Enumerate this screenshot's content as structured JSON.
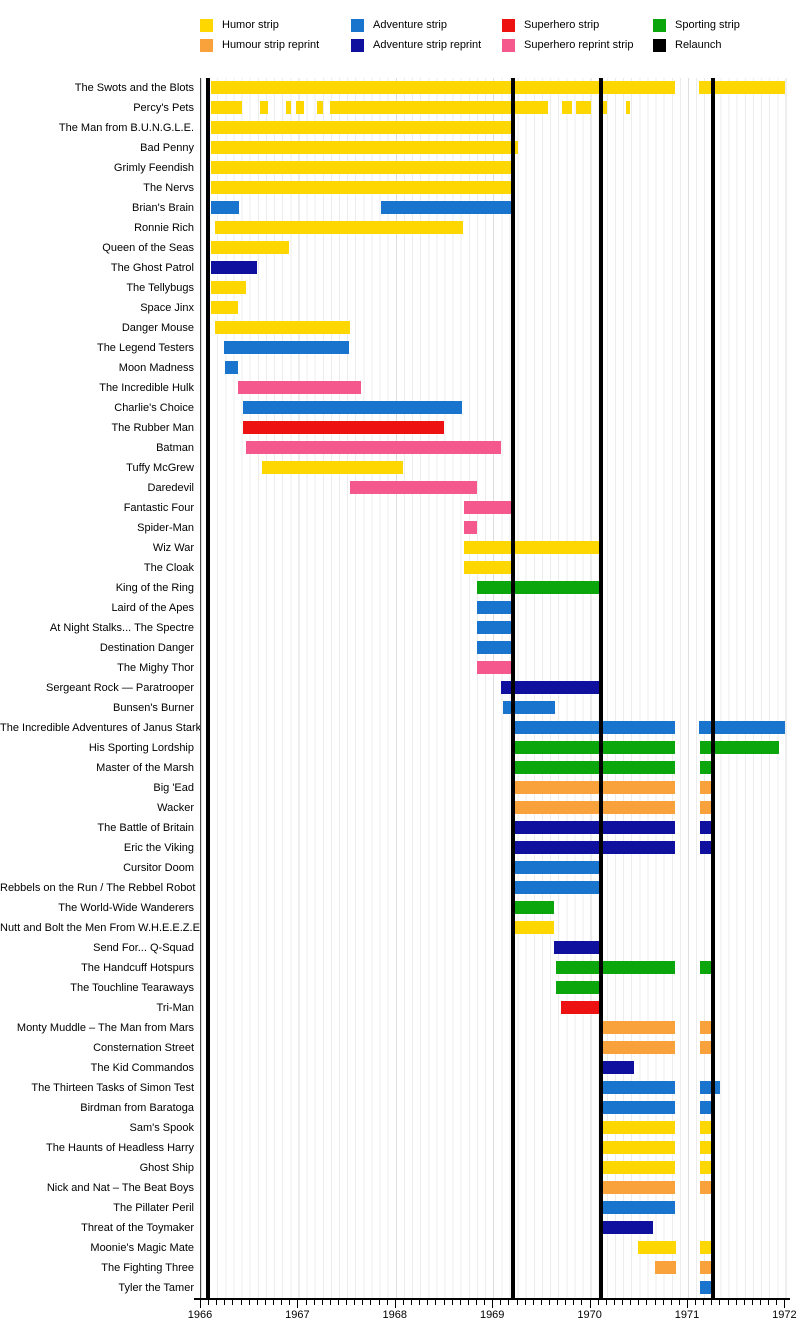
{
  "chart_data": {
    "type": "gantt-timeline",
    "title": "",
    "x_axis": {
      "min": 1966,
      "max": 1972,
      "tick_years": [
        1966,
        1967,
        1968,
        1969,
        1970,
        1971,
        1972
      ],
      "minor_tick": "monthly",
      "grid": true
    },
    "legend_position": "top",
    "colors": {
      "humor": "#FFD700",
      "humor_reprint": "#F9A13B",
      "adventure": "#1874CD",
      "adventure_reprint": "#10109E",
      "superhero": "#EE1111",
      "superhero_reprint": "#F4588C",
      "sporting": "#0BA60B",
      "relaunch": "#000000"
    },
    "legend": [
      {
        "label": "Humor strip",
        "key": "humor"
      },
      {
        "label": "Humour strip reprint",
        "key": "humor_reprint"
      },
      {
        "label": "Adventure strip",
        "key": "adventure"
      },
      {
        "label": "Adventure strip reprint",
        "key": "adventure_reprint"
      },
      {
        "label": "Superhero strip",
        "key": "superhero"
      },
      {
        "label": "Superhero reprint strip",
        "key": "superhero_reprint"
      },
      {
        "label": "Sporting strip",
        "key": "sporting"
      },
      {
        "label": "Relaunch",
        "key": "relaunch"
      }
    ],
    "relaunch_lines": [
      1966.07,
      1969.2,
      1970.11,
      1971.26
    ],
    "rows": [
      {
        "label": "The Swots and the Blots",
        "category": "humor",
        "segments": [
          [
            1966.1,
            1970.87
          ],
          [
            1971.11,
            1972.0
          ]
        ]
      },
      {
        "label": "Percy's Pets",
        "category": "humor",
        "segments": [
          [
            1966.1,
            1966.42
          ],
          [
            1966.61,
            1966.69
          ],
          [
            1966.87,
            1966.92
          ],
          [
            1966.97,
            1967.06
          ],
          [
            1967.19,
            1967.25
          ],
          [
            1967.32,
            1969.56
          ],
          [
            1969.71,
            1969.81
          ],
          [
            1969.85,
            1970.0
          ],
          [
            1970.12,
            1970.17
          ],
          [
            1970.36,
            1970.4
          ]
        ]
      },
      {
        "label": "The Man from B.U.N.G.L.E.",
        "category": "humor",
        "segments": [
          [
            1966.1,
            1969.2
          ]
        ]
      },
      {
        "label": "Bad Penny",
        "category": "humor",
        "segments": [
          [
            1966.1,
            1969.26
          ]
        ]
      },
      {
        "label": "Grimly Feendish",
        "category": "humor",
        "segments": [
          [
            1966.1,
            1969.2
          ]
        ]
      },
      {
        "label": "The Nervs",
        "category": "humor",
        "segments": [
          [
            1966.1,
            1969.2
          ]
        ]
      },
      {
        "label": "Brian's Brain",
        "category": "adventure",
        "segments": [
          [
            1966.1,
            1966.39
          ],
          [
            1967.85,
            1969.2
          ]
        ]
      },
      {
        "label": "Ronnie Rich",
        "category": "humor",
        "segments": [
          [
            1966.14,
            1968.69
          ]
        ]
      },
      {
        "label": "Queen of the Seas",
        "category": "humor",
        "segments": [
          [
            1966.1,
            1966.9
          ]
        ]
      },
      {
        "label": "The Ghost Patrol",
        "category": "adventure_reprint",
        "segments": [
          [
            1966.1,
            1966.58
          ]
        ]
      },
      {
        "label": "The Tellybugs",
        "category": "humor",
        "segments": [
          [
            1966.1,
            1966.46
          ]
        ]
      },
      {
        "label": "Space Jinx",
        "category": "humor",
        "segments": [
          [
            1966.1,
            1966.38
          ]
        ]
      },
      {
        "label": "Danger Mouse",
        "category": "humor",
        "segments": [
          [
            1966.14,
            1967.53
          ]
        ]
      },
      {
        "label": "The Legend Testers",
        "category": "adventure",
        "segments": [
          [
            1966.24,
            1967.52
          ]
        ]
      },
      {
        "label": "Moon Madness",
        "category": "adventure",
        "segments": [
          [
            1966.25,
            1966.38
          ]
        ]
      },
      {
        "label": "The Incredible Hulk",
        "category": "superhero_reprint",
        "segments": [
          [
            1966.38,
            1967.64
          ]
        ]
      },
      {
        "label": "Charlie's Choice",
        "category": "adventure",
        "segments": [
          [
            1966.43,
            1968.68
          ]
        ]
      },
      {
        "label": "The Rubber Man",
        "category": "superhero",
        "segments": [
          [
            1966.43,
            1968.5
          ]
        ]
      },
      {
        "label": "Batman",
        "category": "superhero_reprint",
        "segments": [
          [
            1966.46,
            1969.08
          ]
        ]
      },
      {
        "label": "Tuffy McGrew",
        "category": "humor",
        "segments": [
          [
            1966.63,
            1968.07
          ]
        ]
      },
      {
        "label": "Daredevil",
        "category": "superhero_reprint",
        "segments": [
          [
            1967.53,
            1968.83
          ]
        ]
      },
      {
        "label": "Fantastic Four",
        "category": "superhero_reprint",
        "segments": [
          [
            1968.7,
            1969.2
          ]
        ]
      },
      {
        "label": "Spider-Man",
        "category": "superhero_reprint",
        "segments": [
          [
            1968.7,
            1968.83
          ]
        ]
      },
      {
        "label": "Wiz War",
        "category": "humor",
        "segments": [
          [
            1968.7,
            1970.1
          ]
        ]
      },
      {
        "label": "The Cloak",
        "category": "humor",
        "segments": [
          [
            1968.7,
            1969.2
          ]
        ]
      },
      {
        "label": "King of the Ring",
        "category": "sporting",
        "segments": [
          [
            1968.83,
            1970.1
          ]
        ]
      },
      {
        "label": "Laird of the Apes",
        "category": "adventure",
        "segments": [
          [
            1968.83,
            1969.2
          ]
        ]
      },
      {
        "label": "At Night Stalks... The Spectre",
        "category": "adventure",
        "segments": [
          [
            1968.83,
            1969.2
          ]
        ]
      },
      {
        "label": "Destination Danger",
        "category": "adventure",
        "segments": [
          [
            1968.83,
            1969.2
          ]
        ]
      },
      {
        "label": "The Mighy Thor",
        "category": "superhero_reprint",
        "segments": [
          [
            1968.83,
            1969.2
          ]
        ]
      },
      {
        "label": "Sergeant Rock — Paratrooper",
        "category": "adventure_reprint",
        "segments": [
          [
            1969.08,
            1970.1
          ]
        ]
      },
      {
        "label": "Bunsen's Burner",
        "category": "adventure",
        "segments": [
          [
            1969.1,
            1969.64
          ]
        ]
      },
      {
        "label": "The Incredible Adventures of Janus Stark",
        "category": "adventure",
        "segments": [
          [
            1969.22,
            1970.87
          ],
          [
            1971.11,
            1972.0
          ]
        ]
      },
      {
        "label": "His Sporting Lordship",
        "category": "sporting",
        "segments": [
          [
            1969.22,
            1970.87
          ],
          [
            1971.12,
            1971.93
          ]
        ]
      },
      {
        "label": "Master of the Marsh",
        "category": "sporting",
        "segments": [
          [
            1969.22,
            1970.87
          ],
          [
            1971.12,
            1971.26
          ]
        ]
      },
      {
        "label": "Big 'Ead",
        "category": "humor_reprint",
        "segments": [
          [
            1969.22,
            1970.87
          ],
          [
            1971.12,
            1971.26
          ]
        ]
      },
      {
        "label": "Wacker",
        "category": "humor_reprint",
        "segments": [
          [
            1969.22,
            1970.87
          ],
          [
            1971.12,
            1971.26
          ]
        ]
      },
      {
        "label": "The Battle of Britain",
        "category": "adventure_reprint",
        "segments": [
          [
            1969.22,
            1970.87
          ],
          [
            1971.12,
            1971.26
          ]
        ]
      },
      {
        "label": "Eric the Viking",
        "category": "adventure_reprint",
        "segments": [
          [
            1969.22,
            1970.87
          ],
          [
            1971.12,
            1971.26
          ]
        ]
      },
      {
        "label": "Cursitor Doom",
        "category": "adventure",
        "segments": [
          [
            1969.22,
            1970.1
          ]
        ]
      },
      {
        "label": "Rebbels on the Run / The Rebbel Robot",
        "category": "adventure",
        "segments": [
          [
            1969.22,
            1970.1
          ]
        ]
      },
      {
        "label": "The World-Wide Wanderers",
        "category": "sporting",
        "segments": [
          [
            1969.22,
            1969.62
          ]
        ]
      },
      {
        "label": "Nutt and Bolt the Men From W.H.E.E.Z.E.",
        "category": "humor",
        "segments": [
          [
            1969.22,
            1969.62
          ]
        ]
      },
      {
        "label": "Send For... Q-Squad",
        "category": "adventure_reprint",
        "segments": [
          [
            1969.62,
            1970.1
          ]
        ]
      },
      {
        "label": "The Handcuff Hotspurs",
        "category": "sporting",
        "segments": [
          [
            1969.64,
            1970.87
          ],
          [
            1971.12,
            1971.26
          ]
        ]
      },
      {
        "label": "The Touchline Tearaways",
        "category": "sporting",
        "segments": [
          [
            1969.64,
            1970.1
          ]
        ]
      },
      {
        "label": "Tri-Man",
        "category": "superhero",
        "segments": [
          [
            1969.7,
            1970.1
          ]
        ]
      },
      {
        "label": "Monty Muddle – The Man from Mars",
        "category": "humor_reprint",
        "segments": [
          [
            1970.1,
            1970.87
          ],
          [
            1971.12,
            1971.26
          ]
        ]
      },
      {
        "label": "Consternation Street",
        "category": "humor_reprint",
        "segments": [
          [
            1970.1,
            1970.87
          ],
          [
            1971.12,
            1971.26
          ]
        ]
      },
      {
        "label": "The Kid Commandos",
        "category": "adventure_reprint",
        "segments": [
          [
            1970.1,
            1970.45
          ]
        ]
      },
      {
        "label": "The Thirteen Tasks of Simon Test",
        "category": "adventure",
        "segments": [
          [
            1970.12,
            1970.87
          ],
          [
            1971.12,
            1971.33
          ]
        ]
      },
      {
        "label": "Birdman from Baratoga",
        "category": "adventure",
        "segments": [
          [
            1970.12,
            1970.87
          ],
          [
            1971.12,
            1971.26
          ]
        ]
      },
      {
        "label": "Sam's Spook",
        "category": "humor",
        "segments": [
          [
            1970.12,
            1970.87
          ],
          [
            1971.12,
            1971.26
          ]
        ]
      },
      {
        "label": "The Haunts of Headless Harry",
        "category": "humor",
        "segments": [
          [
            1970.12,
            1970.87
          ],
          [
            1971.12,
            1971.26
          ]
        ]
      },
      {
        "label": "Ghost Ship",
        "category": "humor",
        "segments": [
          [
            1970.12,
            1970.87
          ],
          [
            1971.12,
            1971.26
          ]
        ]
      },
      {
        "label": "Nick and Nat – The Beat Boys",
        "category": "humor_reprint",
        "segments": [
          [
            1970.12,
            1970.87
          ],
          [
            1971.12,
            1971.26
          ]
        ]
      },
      {
        "label": "The Pillater Peril",
        "category": "adventure",
        "segments": [
          [
            1970.12,
            1970.87
          ]
        ]
      },
      {
        "label": "Threat of the Toymaker",
        "category": "adventure_reprint",
        "segments": [
          [
            1970.12,
            1970.64
          ]
        ]
      },
      {
        "label": "Moonie's Magic Mate",
        "category": "humor",
        "segments": [
          [
            1970.49,
            1970.88
          ],
          [
            1971.12,
            1971.26
          ]
        ]
      },
      {
        "label": "The Fighting Three",
        "category": "humor_reprint",
        "segments": [
          [
            1970.66,
            1970.88
          ],
          [
            1971.12,
            1971.26
          ]
        ]
      },
      {
        "label": "Tyler the Tamer",
        "category": "adventure",
        "segments": [
          [
            1971.12,
            1971.26
          ]
        ]
      }
    ]
  }
}
